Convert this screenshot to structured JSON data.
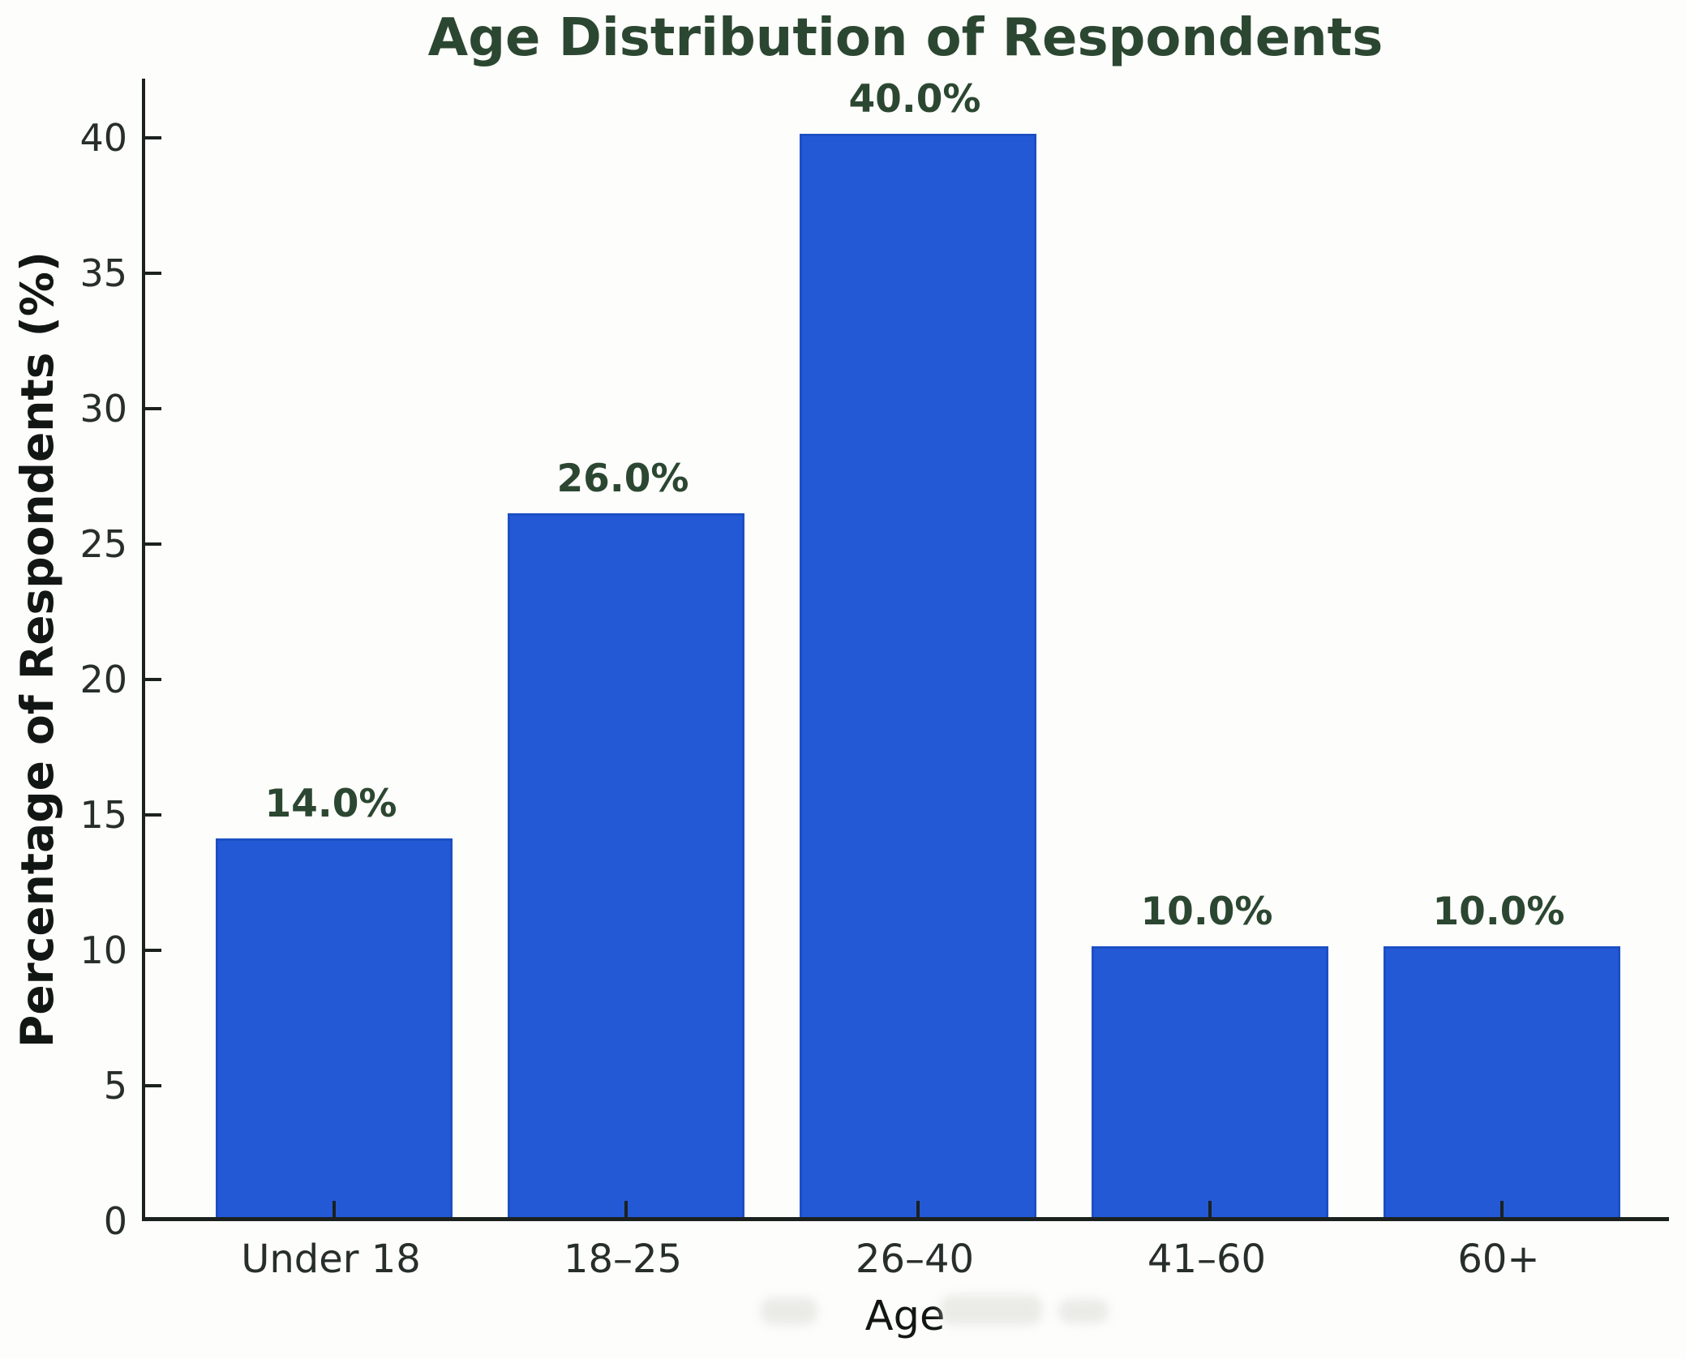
{
  "chart_data": {
    "type": "bar",
    "title": "Age Distribution of Respondents",
    "xlabel": "Age",
    "ylabel": "Percentage of Respondents (%)",
    "categories": [
      "Under 18",
      "18–25",
      "26–40",
      "41–60",
      "60+"
    ],
    "values": [
      14.0,
      26.0,
      40.0,
      10.0,
      10.0
    ],
    "bar_labels": [
      "14.0%",
      "26.0%",
      "40.0%",
      "10.0%",
      "10.0%"
    ],
    "ylim": [
      0,
      42.2
    ],
    "yticks": [
      0,
      5,
      10,
      15,
      20,
      25,
      30,
      35,
      40
    ],
    "grid": false,
    "legend": "none",
    "colors": {
      "bar_fill": "#2459d6",
      "bar_edge": "#1d4fc4",
      "title": "#2c4731",
      "value_label": "#2c4731",
      "tick_label": "#272e2c",
      "axis_line": "#1b211f",
      "axis_label": "#121715"
    }
  }
}
